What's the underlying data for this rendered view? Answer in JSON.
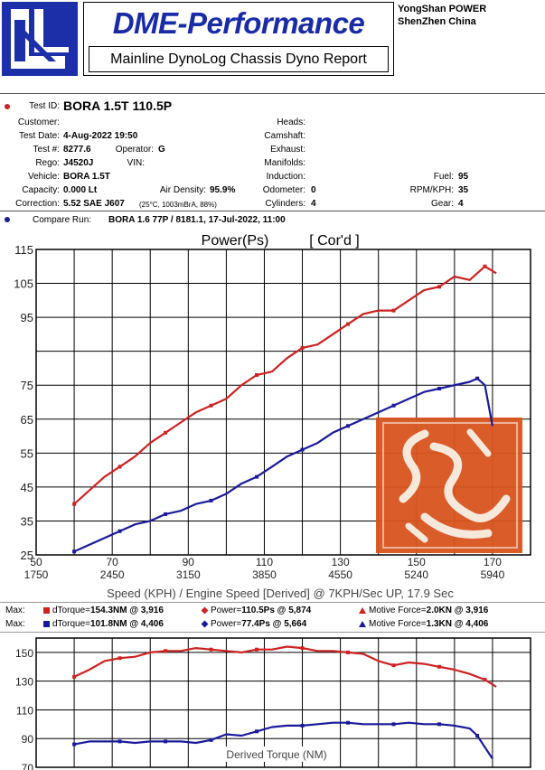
{
  "header": {
    "brand": "DME-Performance",
    "subtitle": "Mainline DynoLog Chassis Dyno Report",
    "company_line1": "YongShan POWER",
    "company_line2": "ShenZhen China"
  },
  "test": {
    "id_label": "Test ID:",
    "id_value": "BORA 1.5T 110.5P",
    "customer_label": "Customer:",
    "customer_value": "",
    "date_label": "Test Date:",
    "date_value": "4-Aug-2022 19:50",
    "testno_label": "Test #:",
    "testno_value": "8277.6",
    "operator_label": "Operator:",
    "operator_value": "G",
    "rego_label": "Rego:",
    "rego_value": "J4520J",
    "vin_label": "VIN:",
    "vin_value": "",
    "vehicle_label": "Vehicle:",
    "vehicle_value": "BORA 1.5T",
    "capacity_label": "Capacity:",
    "capacity_value": "0.000 Lt",
    "airdensity_label": "Air Density:",
    "airdensity_value": "95.9%",
    "correction_label": "Correction:",
    "correction_value": "5.52 SAE J607",
    "correction_note": "(25°C, 1003mBrA, 88%)",
    "heads_label": "Heads:",
    "camshaft_label": "Camshaft:",
    "exhaust_label": "Exhaust:",
    "manifolds_label": "Manifolds:",
    "induction_label": "Induction:",
    "odometer_label": "Odometer:",
    "odometer_value": "0",
    "cylinders_label": "Cylinders:",
    "cylinders_value": "4",
    "fuel_label": "Fuel:",
    "fuel_value": "95",
    "rpmkph_label": "RPM/KPH:",
    "rpmkph_value": "35",
    "gear_label": "Gear:",
    "gear_value": "4",
    "compare_label": "Compare Run:",
    "compare_value": "BORA 1.6 77P / 8181.1,   17-Jul-2022,   11:00"
  },
  "colors": {
    "red": "#cc2222",
    "blue": "#1a1a9a",
    "stamp": "#d8541e"
  },
  "max_rows": [
    {
      "label": "Max:",
      "torque_label": "dTorque=",
      "torque_value": "154.3NM @ 3,916",
      "power_label": "Power=",
      "power_value": "110.5Ps @ 5,874",
      "force_label": "Motive Force=",
      "force_value": "2.0KN @ 3,916"
    },
    {
      "label": "Max:",
      "torque_label": "dTorque=",
      "torque_value": "101.8NM @ 4,406",
      "power_label": "Power=",
      "power_value": "77.4Ps @ 5,664",
      "force_label": "Motive Force=",
      "force_value": "1.3KN @ 4,406"
    }
  ],
  "chart_data": [
    {
      "type": "line",
      "title": "Power(Ps)",
      "subtitle": "[ Cor'd ]",
      "xlabel": "Speed (KPH) / Engine Speed [Derived] @ 7KPH/Sec UP, 17.9 Sec",
      "x_ticks": [
        50,
        70,
        90,
        110,
        130,
        150,
        170
      ],
      "x_tick_labels_rpm": [
        "1750",
        "2450",
        "3150",
        "3850",
        "4550",
        "5240",
        "5940"
      ],
      "y_ticks": [
        25,
        35,
        45,
        55,
        65,
        75,
        85,
        95,
        105,
        115
      ],
      "y_tick_labels": [
        "25",
        "35",
        "45",
        "55",
        "65",
        "75",
        "",
        "95",
        "105",
        "115"
      ],
      "xlim": [
        50,
        180
      ],
      "ylim": [
        25,
        115
      ],
      "grid": true,
      "series": [
        {
          "color": "red",
          "x": [
            60,
            64,
            68,
            72,
            76,
            80,
            84,
            88,
            92,
            96,
            100,
            104,
            108,
            112,
            116,
            120,
            124,
            128,
            132,
            136,
            140,
            144,
            148,
            152,
            156,
            160,
            164,
            168,
            171
          ],
          "y": [
            40,
            44,
            48,
            51,
            54,
            58,
            61,
            64,
            67,
            69,
            71,
            75,
            78,
            79,
            83,
            86,
            87,
            90,
            93,
            96,
            97,
            97,
            100,
            103,
            104,
            107,
            106,
            110,
            108
          ]
        },
        {
          "color": "blue",
          "x": [
            60,
            64,
            68,
            72,
            76,
            80,
            84,
            88,
            92,
            96,
            100,
            104,
            108,
            112,
            116,
            120,
            124,
            128,
            132,
            136,
            140,
            144,
            148,
            152,
            156,
            160,
            164,
            166,
            168,
            170
          ],
          "y": [
            26,
            28,
            30,
            32,
            34,
            35,
            37,
            38,
            40,
            41,
            43,
            46,
            48,
            51,
            54,
            56,
            58,
            61,
            63,
            65,
            67,
            69,
            71,
            73,
            74,
            75,
            76,
            77,
            75,
            63
          ]
        }
      ]
    },
    {
      "type": "line",
      "title": "Derived Torque (NM)",
      "x_ticks": [
        50,
        70,
        90,
        110,
        130,
        150,
        170
      ],
      "y_ticks": [
        70,
        90,
        110,
        130,
        150
      ],
      "y_tick_labels": [
        "70",
        "90",
        "110",
        "130",
        "150"
      ],
      "xlim": [
        50,
        180
      ],
      "ylim": [
        70,
        160
      ],
      "grid": true,
      "series": [
        {
          "color": "red",
          "x": [
            60,
            64,
            68,
            72,
            76,
            80,
            84,
            88,
            92,
            96,
            100,
            104,
            108,
            112,
            116,
            120,
            124,
            128,
            132,
            136,
            140,
            144,
            148,
            152,
            156,
            160,
            164,
            168,
            171
          ],
          "y": [
            133,
            138,
            144,
            146,
            147,
            150,
            151,
            151,
            153,
            152,
            151,
            150,
            152,
            152,
            154,
            153,
            151,
            151,
            150,
            149,
            144,
            141,
            143,
            142,
            140,
            138,
            135,
            131,
            126
          ]
        },
        {
          "color": "blue",
          "x": [
            60,
            64,
            68,
            72,
            76,
            80,
            84,
            88,
            92,
            96,
            100,
            104,
            108,
            112,
            116,
            120,
            124,
            128,
            132,
            136,
            140,
            144,
            148,
            152,
            156,
            160,
            164,
            166,
            168,
            170
          ],
          "y": [
            86,
            88,
            88,
            88,
            87,
            88,
            88,
            88,
            87,
            89,
            93,
            92,
            95,
            98,
            99,
            99,
            100,
            101,
            101,
            100,
            100,
            100,
            101,
            100,
            100,
            99,
            97,
            92,
            84,
            76
          ]
        }
      ]
    }
  ]
}
